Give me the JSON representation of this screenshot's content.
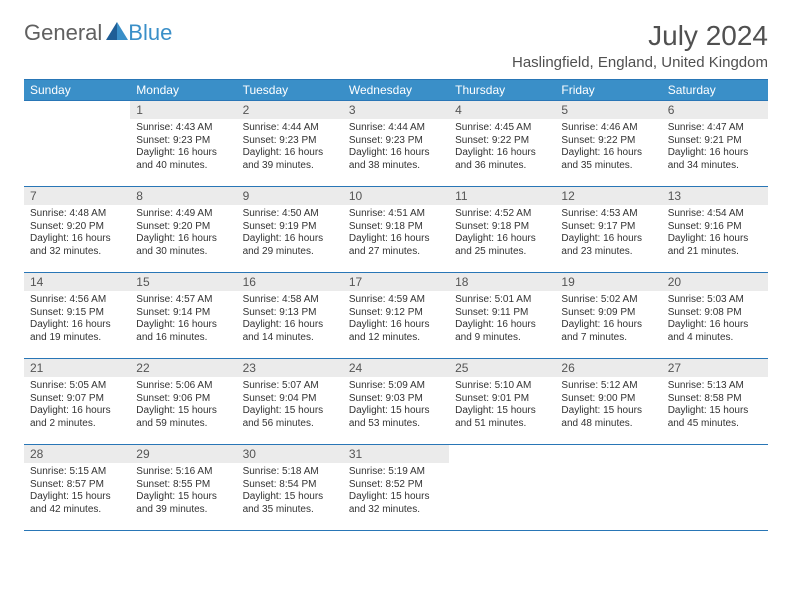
{
  "logo": {
    "part1": "General",
    "part2": "Blue"
  },
  "title": "July 2024",
  "location": "Haslingfield, England, United Kingdom",
  "colors": {
    "header_bg": "#3a8fc8",
    "header_text": "#ffffff",
    "border": "#2976b6",
    "daynum_bg": "#ebebeb",
    "text": "#333333"
  },
  "day_headers": [
    "Sunday",
    "Monday",
    "Tuesday",
    "Wednesday",
    "Thursday",
    "Friday",
    "Saturday"
  ],
  "weeks": [
    [
      {
        "n": "",
        "sr": "",
        "ss": "",
        "dl1": "",
        "dl2": ""
      },
      {
        "n": "1",
        "sr": "Sunrise: 4:43 AM",
        "ss": "Sunset: 9:23 PM",
        "dl1": "Daylight: 16 hours",
        "dl2": "and 40 minutes."
      },
      {
        "n": "2",
        "sr": "Sunrise: 4:44 AM",
        "ss": "Sunset: 9:23 PM",
        "dl1": "Daylight: 16 hours",
        "dl2": "and 39 minutes."
      },
      {
        "n": "3",
        "sr": "Sunrise: 4:44 AM",
        "ss": "Sunset: 9:23 PM",
        "dl1": "Daylight: 16 hours",
        "dl2": "and 38 minutes."
      },
      {
        "n": "4",
        "sr": "Sunrise: 4:45 AM",
        "ss": "Sunset: 9:22 PM",
        "dl1": "Daylight: 16 hours",
        "dl2": "and 36 minutes."
      },
      {
        "n": "5",
        "sr": "Sunrise: 4:46 AM",
        "ss": "Sunset: 9:22 PM",
        "dl1": "Daylight: 16 hours",
        "dl2": "and 35 minutes."
      },
      {
        "n": "6",
        "sr": "Sunrise: 4:47 AM",
        "ss": "Sunset: 9:21 PM",
        "dl1": "Daylight: 16 hours",
        "dl2": "and 34 minutes."
      }
    ],
    [
      {
        "n": "7",
        "sr": "Sunrise: 4:48 AM",
        "ss": "Sunset: 9:20 PM",
        "dl1": "Daylight: 16 hours",
        "dl2": "and 32 minutes."
      },
      {
        "n": "8",
        "sr": "Sunrise: 4:49 AM",
        "ss": "Sunset: 9:20 PM",
        "dl1": "Daylight: 16 hours",
        "dl2": "and 30 minutes."
      },
      {
        "n": "9",
        "sr": "Sunrise: 4:50 AM",
        "ss": "Sunset: 9:19 PM",
        "dl1": "Daylight: 16 hours",
        "dl2": "and 29 minutes."
      },
      {
        "n": "10",
        "sr": "Sunrise: 4:51 AM",
        "ss": "Sunset: 9:18 PM",
        "dl1": "Daylight: 16 hours",
        "dl2": "and 27 minutes."
      },
      {
        "n": "11",
        "sr": "Sunrise: 4:52 AM",
        "ss": "Sunset: 9:18 PM",
        "dl1": "Daylight: 16 hours",
        "dl2": "and 25 minutes."
      },
      {
        "n": "12",
        "sr": "Sunrise: 4:53 AM",
        "ss": "Sunset: 9:17 PM",
        "dl1": "Daylight: 16 hours",
        "dl2": "and 23 minutes."
      },
      {
        "n": "13",
        "sr": "Sunrise: 4:54 AM",
        "ss": "Sunset: 9:16 PM",
        "dl1": "Daylight: 16 hours",
        "dl2": "and 21 minutes."
      }
    ],
    [
      {
        "n": "14",
        "sr": "Sunrise: 4:56 AM",
        "ss": "Sunset: 9:15 PM",
        "dl1": "Daylight: 16 hours",
        "dl2": "and 19 minutes."
      },
      {
        "n": "15",
        "sr": "Sunrise: 4:57 AM",
        "ss": "Sunset: 9:14 PM",
        "dl1": "Daylight: 16 hours",
        "dl2": "and 16 minutes."
      },
      {
        "n": "16",
        "sr": "Sunrise: 4:58 AM",
        "ss": "Sunset: 9:13 PM",
        "dl1": "Daylight: 16 hours",
        "dl2": "and 14 minutes."
      },
      {
        "n": "17",
        "sr": "Sunrise: 4:59 AM",
        "ss": "Sunset: 9:12 PM",
        "dl1": "Daylight: 16 hours",
        "dl2": "and 12 minutes."
      },
      {
        "n": "18",
        "sr": "Sunrise: 5:01 AM",
        "ss": "Sunset: 9:11 PM",
        "dl1": "Daylight: 16 hours",
        "dl2": "and 9 minutes."
      },
      {
        "n": "19",
        "sr": "Sunrise: 5:02 AM",
        "ss": "Sunset: 9:09 PM",
        "dl1": "Daylight: 16 hours",
        "dl2": "and 7 minutes."
      },
      {
        "n": "20",
        "sr": "Sunrise: 5:03 AM",
        "ss": "Sunset: 9:08 PM",
        "dl1": "Daylight: 16 hours",
        "dl2": "and 4 minutes."
      }
    ],
    [
      {
        "n": "21",
        "sr": "Sunrise: 5:05 AM",
        "ss": "Sunset: 9:07 PM",
        "dl1": "Daylight: 16 hours",
        "dl2": "and 2 minutes."
      },
      {
        "n": "22",
        "sr": "Sunrise: 5:06 AM",
        "ss": "Sunset: 9:06 PM",
        "dl1": "Daylight: 15 hours",
        "dl2": "and 59 minutes."
      },
      {
        "n": "23",
        "sr": "Sunrise: 5:07 AM",
        "ss": "Sunset: 9:04 PM",
        "dl1": "Daylight: 15 hours",
        "dl2": "and 56 minutes."
      },
      {
        "n": "24",
        "sr": "Sunrise: 5:09 AM",
        "ss": "Sunset: 9:03 PM",
        "dl1": "Daylight: 15 hours",
        "dl2": "and 53 minutes."
      },
      {
        "n": "25",
        "sr": "Sunrise: 5:10 AM",
        "ss": "Sunset: 9:01 PM",
        "dl1": "Daylight: 15 hours",
        "dl2": "and 51 minutes."
      },
      {
        "n": "26",
        "sr": "Sunrise: 5:12 AM",
        "ss": "Sunset: 9:00 PM",
        "dl1": "Daylight: 15 hours",
        "dl2": "and 48 minutes."
      },
      {
        "n": "27",
        "sr": "Sunrise: 5:13 AM",
        "ss": "Sunset: 8:58 PM",
        "dl1": "Daylight: 15 hours",
        "dl2": "and 45 minutes."
      }
    ],
    [
      {
        "n": "28",
        "sr": "Sunrise: 5:15 AM",
        "ss": "Sunset: 8:57 PM",
        "dl1": "Daylight: 15 hours",
        "dl2": "and 42 minutes."
      },
      {
        "n": "29",
        "sr": "Sunrise: 5:16 AM",
        "ss": "Sunset: 8:55 PM",
        "dl1": "Daylight: 15 hours",
        "dl2": "and 39 minutes."
      },
      {
        "n": "30",
        "sr": "Sunrise: 5:18 AM",
        "ss": "Sunset: 8:54 PM",
        "dl1": "Daylight: 15 hours",
        "dl2": "and 35 minutes."
      },
      {
        "n": "31",
        "sr": "Sunrise: 5:19 AM",
        "ss": "Sunset: 8:52 PM",
        "dl1": "Daylight: 15 hours",
        "dl2": "and 32 minutes."
      },
      {
        "n": "",
        "sr": "",
        "ss": "",
        "dl1": "",
        "dl2": ""
      },
      {
        "n": "",
        "sr": "",
        "ss": "",
        "dl1": "",
        "dl2": ""
      },
      {
        "n": "",
        "sr": "",
        "ss": "",
        "dl1": "",
        "dl2": ""
      }
    ]
  ]
}
